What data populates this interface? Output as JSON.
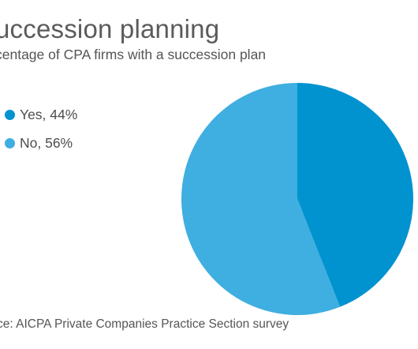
{
  "header": {
    "title": "uccession planning",
    "subtitle": "centage of CPA firms with a succession plan"
  },
  "footer": {
    "source": "ce: AICPA Private Companies Practice Section survey"
  },
  "chart_data": {
    "type": "pie",
    "title": "uccession planning",
    "subtitle": "centage of CPA firms with a succession plan",
    "start_angle_deg": 0,
    "direction": "clockwise",
    "slices": [
      {
        "label": "Yes, 44%",
        "value": 44,
        "color": "#0093d0"
      },
      {
        "label": "No, 56%",
        "value": 56,
        "color": "#3faee0"
      }
    ],
    "legend_position": "left"
  }
}
